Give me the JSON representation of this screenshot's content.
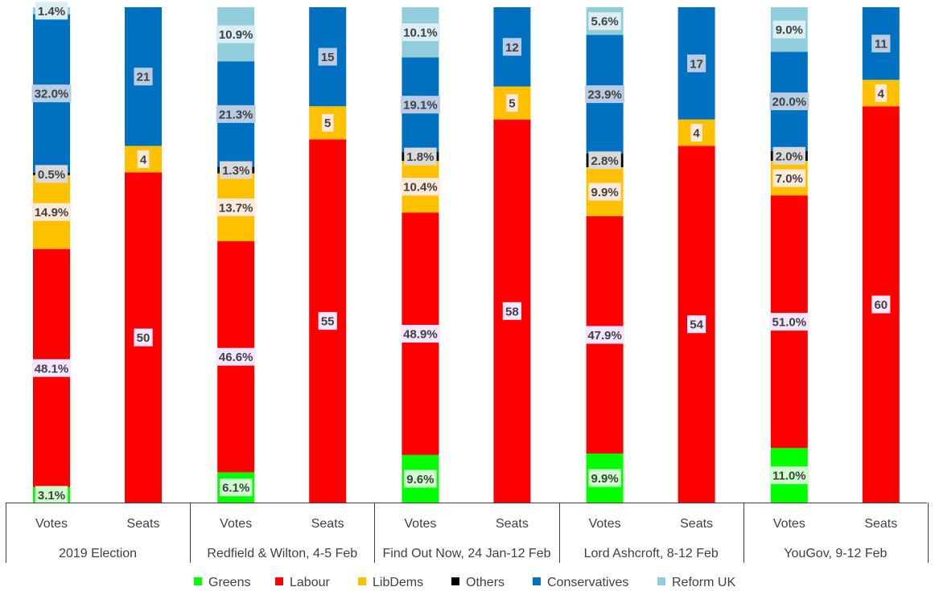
{
  "chart_data": {
    "type": "bar",
    "stacked": true,
    "normalized": true,
    "groups": [
      "2019 Election",
      "Redfield & Wilton, 4-5 Feb",
      "Find Out Now, 24 Jan-12 Feb",
      "Lord Ashcroft, 8-12 Feb",
      "YouGov, 9-12 Feb"
    ],
    "bar_labels": [
      "Votes",
      "Seats"
    ],
    "series": [
      {
        "name": "Greens",
        "color": "#00ff00"
      },
      {
        "name": "Labour",
        "color": "#ff0000"
      },
      {
        "name": "LibDems",
        "color": "#ffc000"
      },
      {
        "name": "Others",
        "color": "#000000"
      },
      {
        "name": "Conservatives",
        "color": "#0070c0"
      },
      {
        "name": "Reform UK",
        "color": "#92cddc"
      }
    ],
    "bars": [
      {
        "group": "2019 Election",
        "bar": "Votes",
        "values": [
          3.1,
          48.1,
          14.9,
          0.5,
          32.0,
          1.4
        ],
        "labels": [
          "3.1%",
          "48.1%",
          "14.9%",
          "0.5%",
          "32.0%",
          "1.4%"
        ]
      },
      {
        "group": "2019 Election",
        "bar": "Seats",
        "values": [
          0,
          50,
          4,
          0,
          21,
          0
        ],
        "labels": [
          "",
          "50",
          "4",
          "",
          "21",
          ""
        ]
      },
      {
        "group": "Redfield & Wilton, 4-5 Feb",
        "bar": "Votes",
        "values": [
          6.1,
          46.6,
          13.7,
          1.3,
          21.3,
          10.9
        ],
        "labels": [
          "6.1%",
          "46.6%",
          "13.7%",
          "1.3%",
          "21.3%",
          "10.9%"
        ]
      },
      {
        "group": "Redfield & Wilton, 4-5 Feb",
        "bar": "Seats",
        "values": [
          0,
          55,
          5,
          0,
          15,
          0
        ],
        "labels": [
          "",
          "55",
          "5",
          "",
          "15",
          ""
        ]
      },
      {
        "group": "Find Out Now, 24 Jan-12 Feb",
        "bar": "Votes",
        "values": [
          9.6,
          48.9,
          10.4,
          1.8,
          19.1,
          10.1
        ],
        "labels": [
          "9.6%",
          "48.9%",
          "10.4%",
          "1.8%",
          "19.1%",
          "10.1%"
        ]
      },
      {
        "group": "Find Out Now, 24 Jan-12 Feb",
        "bar": "Seats",
        "values": [
          0,
          58,
          5,
          0,
          12,
          0
        ],
        "labels": [
          "",
          "58",
          "5",
          "",
          "12",
          ""
        ]
      },
      {
        "group": "Lord Ashcroft, 8-12 Feb",
        "bar": "Votes",
        "values": [
          9.9,
          47.9,
          9.9,
          2.8,
          23.9,
          5.6
        ],
        "labels": [
          "9.9%",
          "47.9%",
          "9.9%",
          "2.8%",
          "23.9%",
          "5.6%"
        ]
      },
      {
        "group": "Lord Ashcroft, 8-12 Feb",
        "bar": "Seats",
        "values": [
          0,
          54,
          4,
          0,
          17,
          0
        ],
        "labels": [
          "",
          "54",
          "4",
          "",
          "17",
          ""
        ]
      },
      {
        "group": "YouGov, 9-12 Feb",
        "bar": "Votes",
        "values": [
          11.0,
          51.0,
          7.0,
          2.0,
          20.0,
          9.0
        ],
        "labels": [
          "11.0%",
          "51.0%",
          "7.0%",
          "2.0%",
          "20.0%",
          "9.0%"
        ]
      },
      {
        "group": "YouGov, 9-12 Feb",
        "bar": "Seats",
        "values": [
          0,
          60,
          4,
          0,
          11,
          0
        ],
        "labels": [
          "",
          "60",
          "4",
          "",
          "11",
          ""
        ]
      }
    ],
    "label_backgrounds": [
      "#ccffcc",
      "#f4e6ff",
      "#fde9d9",
      "#d9d9d9",
      "#b8cce4",
      "#daeef3"
    ],
    "legend": "bottom",
    "grid": false
  }
}
